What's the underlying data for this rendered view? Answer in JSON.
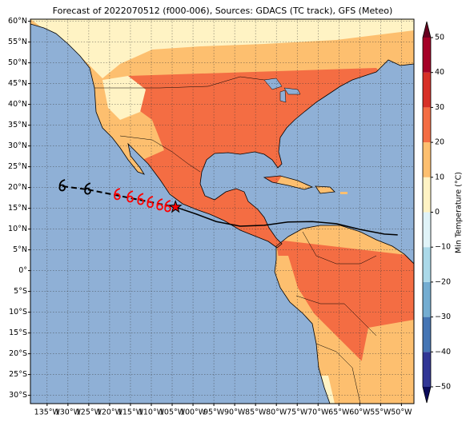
{
  "title": "Forecast of 2022070512 (f000-006), Sources: GDACS (TC track), GFS (Meteo)",
  "map": {
    "xlim": [
      -139,
      -47
    ],
    "ylim": [
      -32,
      60.5
    ],
    "xticks": [
      {
        "value": -135,
        "label": "135°W"
      },
      {
        "value": -130,
        "label": "130°W"
      },
      {
        "value": -125,
        "label": "125°W"
      },
      {
        "value": -120,
        "label": "120°W"
      },
      {
        "value": -115,
        "label": "115°W"
      },
      {
        "value": -110,
        "label": "110°W"
      },
      {
        "value": -105,
        "label": "105°W"
      },
      {
        "value": -100,
        "label": "100°W"
      },
      {
        "value": -95,
        "label": "95°W"
      },
      {
        "value": -90,
        "label": "90°W"
      },
      {
        "value": -85,
        "label": "85°W"
      },
      {
        "value": -80,
        "label": "80°W"
      },
      {
        "value": -75,
        "label": "75°W"
      },
      {
        "value": -70,
        "label": "70°W"
      },
      {
        "value": -65,
        "label": "65°W"
      },
      {
        "value": -60,
        "label": "60°W"
      },
      {
        "value": -55,
        "label": "55°W"
      },
      {
        "value": -50,
        "label": "50°W"
      }
    ],
    "yticks": [
      {
        "value": 60,
        "label": "60°N"
      },
      {
        "value": 55,
        "label": "55°N"
      },
      {
        "value": 50,
        "label": "50°N"
      },
      {
        "value": 45,
        "label": "45°N"
      },
      {
        "value": 40,
        "label": "40°N"
      },
      {
        "value": 35,
        "label": "35°N"
      },
      {
        "value": 30,
        "label": "30°N"
      },
      {
        "value": 25,
        "label": "25°N"
      },
      {
        "value": 20,
        "label": "20°N"
      },
      {
        "value": 15,
        "label": "15°N"
      },
      {
        "value": 10,
        "label": "10°N"
      },
      {
        "value": 5,
        "label": "5°N"
      },
      {
        "value": 0,
        "label": "0°"
      },
      {
        "value": -5,
        "label": "5°S"
      },
      {
        "value": -10,
        "label": "10°S"
      },
      {
        "value": -15,
        "label": "15°S"
      },
      {
        "value": -20,
        "label": "20°S"
      },
      {
        "value": -25,
        "label": "25°S"
      },
      {
        "value": -30,
        "label": "30°S"
      }
    ],
    "grid": true,
    "storm": {
      "past": {
        "lon": [
          -131.3,
          -125.2
        ],
        "lat": [
          20.3,
          19.5
        ],
        "color": "#000000"
      },
      "forecast": {
        "lon": [
          -118.1,
          -115,
          -112.5,
          -110.2,
          -107.9,
          -106
        ],
        "lat": [
          18.2,
          17.6,
          17,
          16.3,
          15.7,
          15.3
        ],
        "color": "#ff0000"
      },
      "current": {
        "lon": -104.2,
        "lat": 15.3,
        "color": "#ff0000"
      },
      "trajectory": {
        "lon": [
          -104.2,
          -99.2,
          -94.4,
          -88.7,
          -82.9,
          -77.2,
          -71.4,
          -65.6,
          -59.9,
          -54.1,
          -50.9
        ],
        "lat": [
          15.3,
          13.6,
          11.8,
          10.7,
          10.9,
          11.7,
          11.8,
          11.3,
          9.9,
          8.8,
          8.6
        ],
        "color": "#000000"
      }
    }
  },
  "colorbar": {
    "label": "Min Temperature (°C)",
    "ticks": [
      {
        "value": -50,
        "label": "−50"
      },
      {
        "value": -40,
        "label": "−40"
      },
      {
        "value": -30,
        "label": "−30"
      },
      {
        "value": -20,
        "label": "−20"
      },
      {
        "value": -10,
        "label": "−10"
      },
      0,
      10,
      20,
      30,
      40,
      50
    ],
    "colors": [
      "#313695",
      "#4575b4",
      "#74add1",
      "#abd9e9",
      "#e0f3f8",
      "#fff3c4",
      "#fdbf6f",
      "#f46d43",
      "#d73027",
      "#a50026"
    ],
    "extend_colors": [
      "#0b0b5a",
      "#67001f"
    ]
  }
}
